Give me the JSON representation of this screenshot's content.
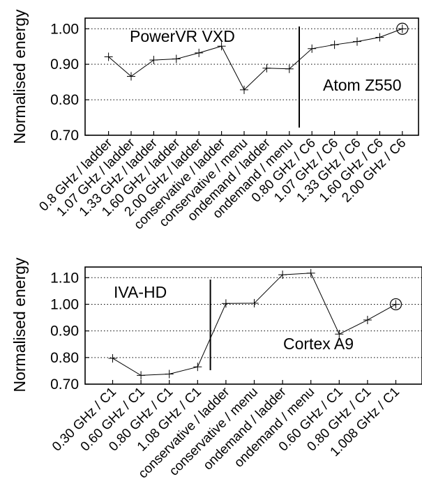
{
  "chart_data": [
    {
      "type": "line",
      "ylabel": "Normalised energy",
      "ylim": [
        0.7,
        1.0
      ],
      "yticks": [
        "0.70",
        "0.80",
        "0.90",
        "1.00"
      ],
      "categories": [
        "0.8 GHz / ladder",
        "1.07 GHz / ladder",
        "1.33 GHz / ladder",
        "1.60 GHz / ladder",
        "2.00 GHz / ladder",
        "conservative / ladder",
        "conservative / menu",
        "ondemand / ladder",
        "ondemand / menu",
        "0.80 GHz / C6",
        "1.07 GHz / C6",
        "1.33 GHz / C6",
        "1.60 GHz / C6",
        "2.00 GHz / C6"
      ],
      "values": [
        0.921,
        0.866,
        0.912,
        0.915,
        0.932,
        0.951,
        0.828,
        0.889,
        0.887,
        0.944,
        0.955,
        0.964,
        0.976,
        1.0
      ],
      "grid": "horizontal dotted",
      "divider_after_index": 8,
      "annotations": [
        "PowerVR VXD",
        "Atom Z550"
      ],
      "reference_point_index": 13
    },
    {
      "type": "line",
      "ylabel": "Normalised energy",
      "ylim": [
        0.7,
        1.1
      ],
      "yticks": [
        "0.70",
        "0.80",
        "0.90",
        "1.00",
        "1.10"
      ],
      "categories": [
        "0.30 GHz / C1",
        "0.60 GHz / C1",
        "0.80 GHz / C1",
        "1.08 GHz / C1",
        "conservative / ladder",
        "conservative / menu",
        "ondemand / ladder",
        "ondemand / menu",
        "0.60 GHz / C1",
        "0.80 GHz / C1",
        "1.008 GHz / C1"
      ],
      "values": [
        0.797,
        0.733,
        0.738,
        0.765,
        1.003,
        1.004,
        1.111,
        1.117,
        0.888,
        0.941,
        1.0
      ],
      "grid": "horizontal dotted",
      "divider_after_index": 3,
      "annotations": [
        "IVA-HD",
        "Cortex A9"
      ],
      "reference_point_index": 10
    }
  ]
}
